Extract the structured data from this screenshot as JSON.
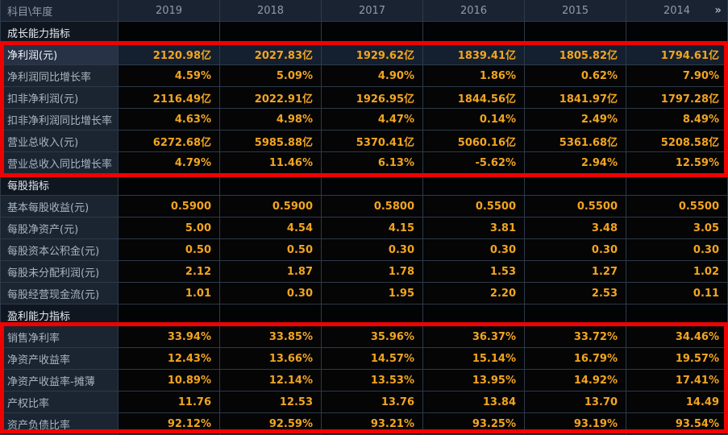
{
  "meta": {
    "value_color": "#f2a51f",
    "annotation_color": "#ee0202",
    "header_bg": "#1a2332",
    "label_bg": "#1b2431",
    "highlight_row_bg": "#14202f"
  },
  "table": {
    "corner_label": "科目\\年度",
    "years": [
      "2019",
      "2018",
      "2017",
      "2016",
      "2015",
      "2014"
    ],
    "more_icon": "»",
    "sections": [
      {
        "id": "growth",
        "title": "成长能力指标",
        "boxed": true,
        "rows": [
          {
            "label": "净利润(元)",
            "highlight": true,
            "values": [
              "2120.98亿",
              "2027.83亿",
              "1929.62亿",
              "1839.41亿",
              "1805.82亿",
              "1794.61亿"
            ]
          },
          {
            "label": "净利润同比增长率",
            "values": [
              "4.59%",
              "5.09%",
              "4.90%",
              "1.86%",
              "0.62%",
              "7.90%"
            ]
          },
          {
            "label": "扣非净利润(元)",
            "values": [
              "2116.49亿",
              "2022.91亿",
              "1926.95亿",
              "1844.56亿",
              "1841.97亿",
              "1797.28亿"
            ]
          },
          {
            "label": "扣非净利润同比增长率",
            "values": [
              "4.63%",
              "4.98%",
              "4.47%",
              "0.14%",
              "2.49%",
              "8.49%"
            ]
          },
          {
            "label": "营业总收入(元)",
            "values": [
              "6272.68亿",
              "5985.88亿",
              "5370.41亿",
              "5060.16亿",
              "5361.68亿",
              "5208.58亿"
            ]
          },
          {
            "label": "营业总收入同比增长率",
            "values": [
              "4.79%",
              "11.46%",
              "6.13%",
              "-5.62%",
              "2.94%",
              "12.59%"
            ]
          }
        ]
      },
      {
        "id": "per_share",
        "title": "每股指标",
        "boxed": false,
        "rows": [
          {
            "label": "基本每股收益(元)",
            "values": [
              "0.5900",
              "0.5900",
              "0.5800",
              "0.5500",
              "0.5500",
              "0.5500"
            ]
          },
          {
            "label": "每股净资产(元)",
            "values": [
              "5.00",
              "4.54",
              "4.15",
              "3.81",
              "3.48",
              "3.05"
            ]
          },
          {
            "label": "每股资本公积金(元)",
            "values": [
              "0.50",
              "0.50",
              "0.30",
              "0.30",
              "0.30",
              "0.30"
            ]
          },
          {
            "label": "每股未分配利润(元)",
            "values": [
              "2.12",
              "1.87",
              "1.78",
              "1.53",
              "1.27",
              "1.02"
            ]
          },
          {
            "label": "每股经营现金流(元)",
            "values": [
              "1.01",
              "0.30",
              "1.95",
              "2.20",
              "2.53",
              "0.11"
            ]
          }
        ]
      },
      {
        "id": "profitability",
        "title": "盈利能力指标",
        "boxed": true,
        "rows": [
          {
            "label": "销售净利率",
            "values": [
              "33.94%",
              "33.85%",
              "35.96%",
              "36.37%",
              "33.72%",
              "34.46%"
            ]
          },
          {
            "label": "净资产收益率",
            "values": [
              "12.43%",
              "13.66%",
              "14.57%",
              "15.14%",
              "16.79%",
              "19.57%"
            ]
          },
          {
            "label": "净资产收益率-摊薄",
            "values": [
              "10.89%",
              "12.14%",
              "13.53%",
              "13.95%",
              "14.92%",
              "17.41%"
            ]
          },
          {
            "label": "产权比率",
            "values": [
              "11.76",
              "12.53",
              "13.76",
              "13.84",
              "13.70",
              "14.49"
            ]
          },
          {
            "label": "资产负债比率",
            "values": [
              "92.12%",
              "92.59%",
              "93.21%",
              "93.25%",
              "93.19%",
              "93.54%"
            ]
          }
        ]
      }
    ]
  }
}
